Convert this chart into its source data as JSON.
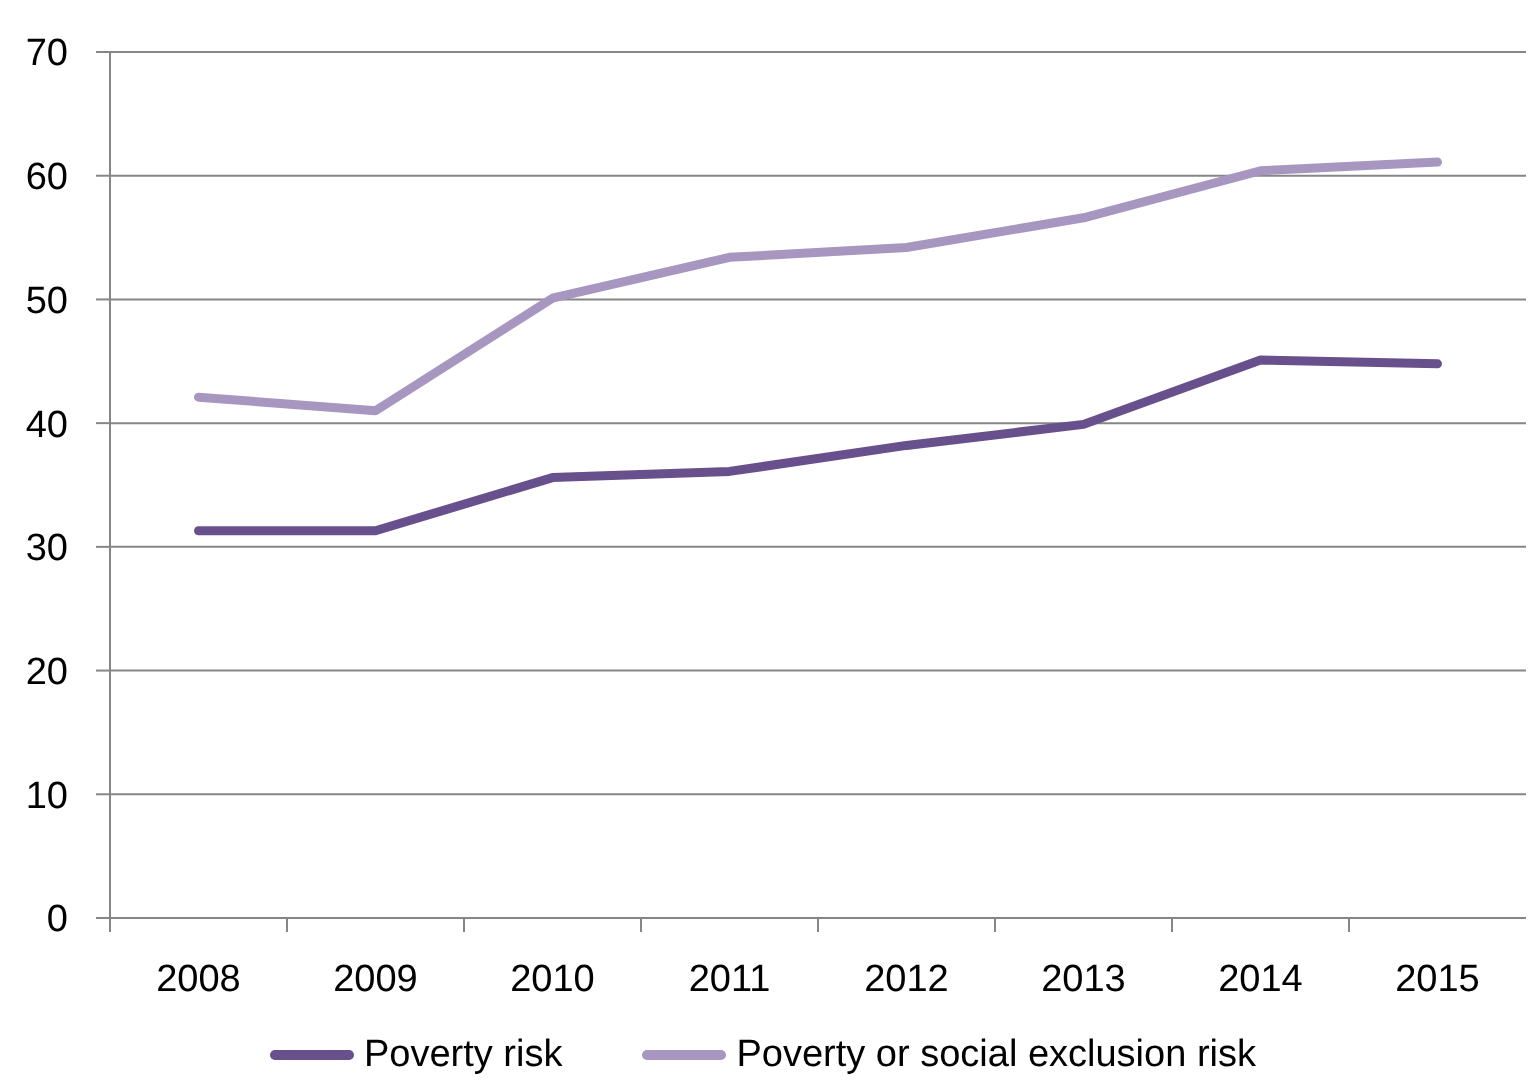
{
  "chart_data": {
    "type": "line",
    "categories": [
      "2008",
      "2009",
      "2010",
      "2011",
      "2012",
      "2013",
      "2014",
      "2015"
    ],
    "series": [
      {
        "name": "Poverty risk",
        "color": "#68508c",
        "values": [
          31.3,
          31.3,
          35.6,
          36.1,
          38.2,
          39.9,
          45.1,
          44.8
        ]
      },
      {
        "name": "Poverty or social exclusion risk",
        "color": "#a797c0",
        "values": [
          42.1,
          41.0,
          50.1,
          53.4,
          54.2,
          56.6,
          60.4,
          61.1
        ]
      }
    ],
    "ylim": [
      0,
      70
    ],
    "yticks": [
      0,
      10,
      20,
      30,
      40,
      50,
      60,
      70
    ],
    "grid": "y",
    "legend": "bottom",
    "marker": "none",
    "line_style": "solid"
  }
}
